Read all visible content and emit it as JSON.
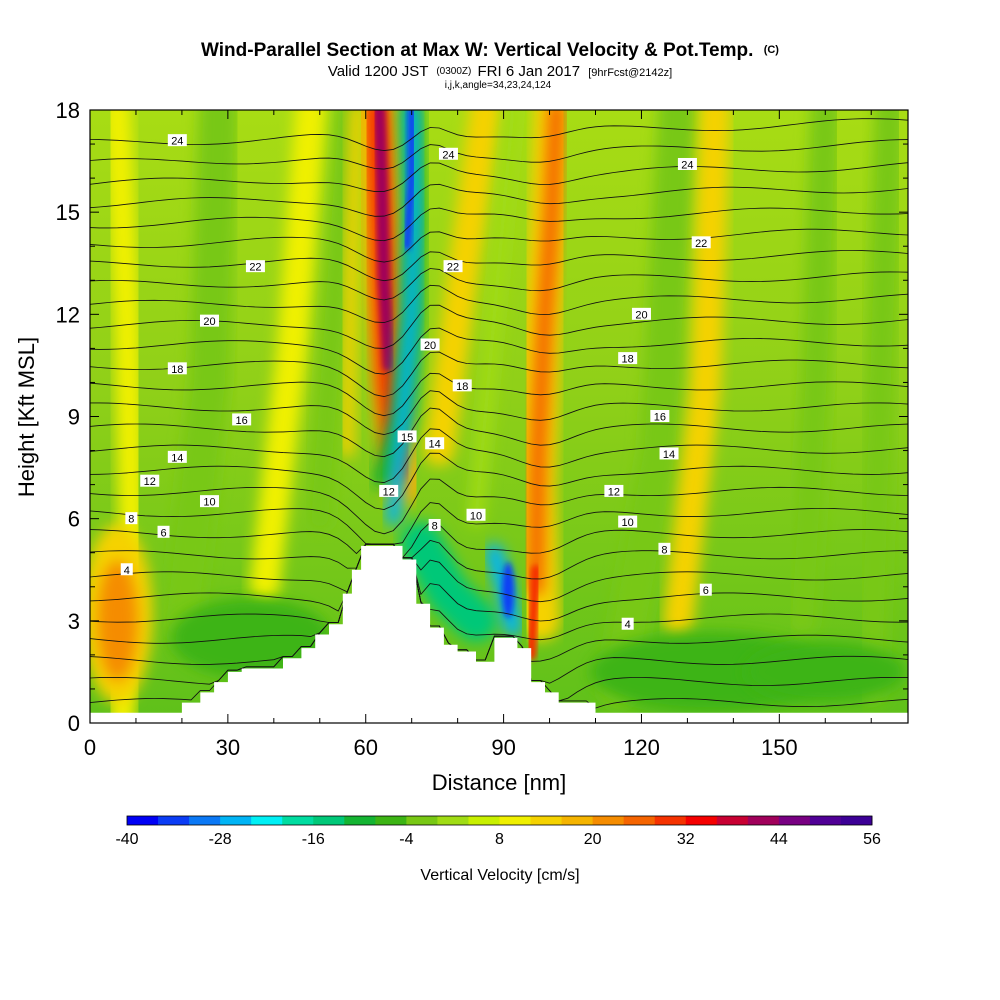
{
  "header": {
    "title_main": "Wind-Parallel Section at Max W: Vertical Velocity & Pot.Temp.",
    "title_mark": "(C)",
    "subtitle_a": "Valid 1200 JST",
    "subtitle_b": "(0300Z)",
    "subtitle_c": "FRI 6 Jan 2017",
    "subtitle_d": "[9hrFcst@2142z]",
    "subtitle_ijk": "i,j,k,angle=34,23,24,124"
  },
  "chart_data": {
    "type": "heatmap",
    "xlabel": "Distance [nm]",
    "ylabel": "Height [Kft MSL]",
    "xlim": [
      0,
      178
    ],
    "ylim": [
      0,
      18
    ],
    "x_ticks": [
      0,
      30,
      60,
      90,
      120,
      150
    ],
    "y_ticks": [
      0,
      3,
      6,
      9,
      12,
      15,
      18
    ],
    "grid": false,
    "colorbar": {
      "label": "Vertical Velocity [cm/s]",
      "min": -40,
      "max": 56,
      "step": 4,
      "tick_labels": [
        -40,
        -28,
        -16,
        -4,
        8,
        20,
        32,
        44,
        56
      ],
      "colors": [
        "#0000f5",
        "#0a3cf5",
        "#0a78f5",
        "#00b4f5",
        "#00f0f5",
        "#00dca0",
        "#00c878",
        "#14b432",
        "#3cb414",
        "#78c814",
        "#a0dc14",
        "#c8f000",
        "#f0f000",
        "#f5d200",
        "#f5b400",
        "#f58c00",
        "#f56400",
        "#f53200",
        "#f50000",
        "#c80032",
        "#a0005a",
        "#780082",
        "#500096",
        "#3c0096"
      ]
    },
    "velocity_features": [
      {
        "kind": "updraft",
        "x": 65,
        "y": 12.5,
        "value": 36
      },
      {
        "kind": "downdraft",
        "x": 71,
        "y": 14.5,
        "value": -36
      },
      {
        "kind": "downdraft",
        "x": 91,
        "y": 4,
        "value": -36
      },
      {
        "kind": "downdraft",
        "x": 78,
        "y": 3.5,
        "value": -16
      },
      {
        "kind": "updraft",
        "x": 98,
        "y": 13,
        "value": 20
      },
      {
        "kind": "updraft",
        "x": 7,
        "y": 3,
        "value": 16
      },
      {
        "kind": "updraft",
        "x": 135,
        "y": 12,
        "value": 14
      }
    ],
    "terrain_height": [
      [
        0,
        0.3
      ],
      [
        20,
        0.3
      ],
      [
        20,
        0.6
      ],
      [
        24,
        0.6
      ],
      [
        24,
        0.9
      ],
      [
        27,
        0.9
      ],
      [
        27,
        1.2
      ],
      [
        30,
        1.2
      ],
      [
        30,
        1.5
      ],
      [
        33,
        1.5
      ],
      [
        33,
        1.6
      ],
      [
        42,
        1.6
      ],
      [
        42,
        1.9
      ],
      [
        46,
        1.9
      ],
      [
        46,
        2.2
      ],
      [
        49,
        2.2
      ],
      [
        49,
        2.6
      ],
      [
        52,
        2.6
      ],
      [
        52,
        2.9
      ],
      [
        55,
        2.9
      ],
      [
        55,
        3.8
      ],
      [
        57,
        3.8
      ],
      [
        57,
        4.5
      ],
      [
        59,
        4.5
      ],
      [
        59,
        5.2
      ],
      [
        68,
        5.2
      ],
      [
        68,
        4.8
      ],
      [
        71,
        4.8
      ],
      [
        71,
        3.5
      ],
      [
        74,
        3.5
      ],
      [
        74,
        2.8
      ],
      [
        77,
        2.8
      ],
      [
        77,
        2.3
      ],
      [
        80,
        2.3
      ],
      [
        80,
        2.1
      ],
      [
        84,
        2.1
      ],
      [
        84,
        1.8
      ],
      [
        88,
        1.8
      ],
      [
        88,
        2.5
      ],
      [
        93,
        2.5
      ],
      [
        93,
        2.2
      ],
      [
        96,
        2.2
      ],
      [
        96,
        1.2
      ],
      [
        99,
        1.2
      ],
      [
        99,
        0.9
      ],
      [
        102,
        0.9
      ],
      [
        102,
        0.6
      ],
      [
        110,
        0.6
      ],
      [
        110,
        0.3
      ],
      [
        178,
        0.3
      ]
    ],
    "theta_contours": [
      {
        "label": "4",
        "label_at": [
          8,
          4.5
        ]
      },
      {
        "label": "4",
        "label_at": [
          117,
          2.9
        ]
      },
      {
        "label": "6",
        "label_at": [
          16,
          5.6
        ]
      },
      {
        "label": "6",
        "label_at": [
          134,
          3.9
        ]
      },
      {
        "label": "8",
        "label_at": [
          9,
          6.0
        ]
      },
      {
        "label": "8",
        "label_at": [
          75,
          5.8
        ]
      },
      {
        "label": "8",
        "label_at": [
          125,
          5.1
        ]
      },
      {
        "label": "10",
        "label_at": [
          26,
          6.5
        ]
      },
      {
        "label": "10",
        "label_at": [
          84,
          6.1
        ]
      },
      {
        "label": "10",
        "label_at": [
          117,
          5.9
        ]
      },
      {
        "label": "12",
        "label_at": [
          13,
          7.1
        ]
      },
      {
        "label": "12",
        "label_at": [
          65,
          6.8
        ]
      },
      {
        "label": "12",
        "label_at": [
          114,
          6.8
        ]
      },
      {
        "label": "14",
        "label_at": [
          19,
          7.8
        ]
      },
      {
        "label": "14",
        "label_at": [
          75,
          8.2
        ]
      },
      {
        "label": "14",
        "label_at": [
          126,
          7.9
        ]
      },
      {
        "label": "15",
        "label_at": [
          69,
          8.4
        ]
      },
      {
        "label": "16",
        "label_at": [
          33,
          8.9
        ]
      },
      {
        "label": "16",
        "label_at": [
          124,
          9.0
        ]
      },
      {
        "label": "18",
        "label_at": [
          19,
          10.4
        ]
      },
      {
        "label": "18",
        "label_at": [
          81,
          9.9
        ]
      },
      {
        "label": "18",
        "label_at": [
          117,
          10.7
        ]
      },
      {
        "label": "20",
        "label_at": [
          26,
          11.8
        ]
      },
      {
        "label": "20",
        "label_at": [
          74,
          11.1
        ]
      },
      {
        "label": "20",
        "label_at": [
          120,
          12.0
        ]
      },
      {
        "label": "22",
        "label_at": [
          36,
          13.4
        ]
      },
      {
        "label": "22",
        "label_at": [
          79,
          13.4
        ]
      },
      {
        "label": "22",
        "label_at": [
          133,
          14.1
        ]
      },
      {
        "label": "24",
        "label_at": [
          19,
          17.1
        ]
      },
      {
        "label": "24",
        "label_at": [
          78,
          16.7
        ]
      },
      {
        "label": "24",
        "label_at": [
          130,
          16.4
        ]
      }
    ]
  }
}
